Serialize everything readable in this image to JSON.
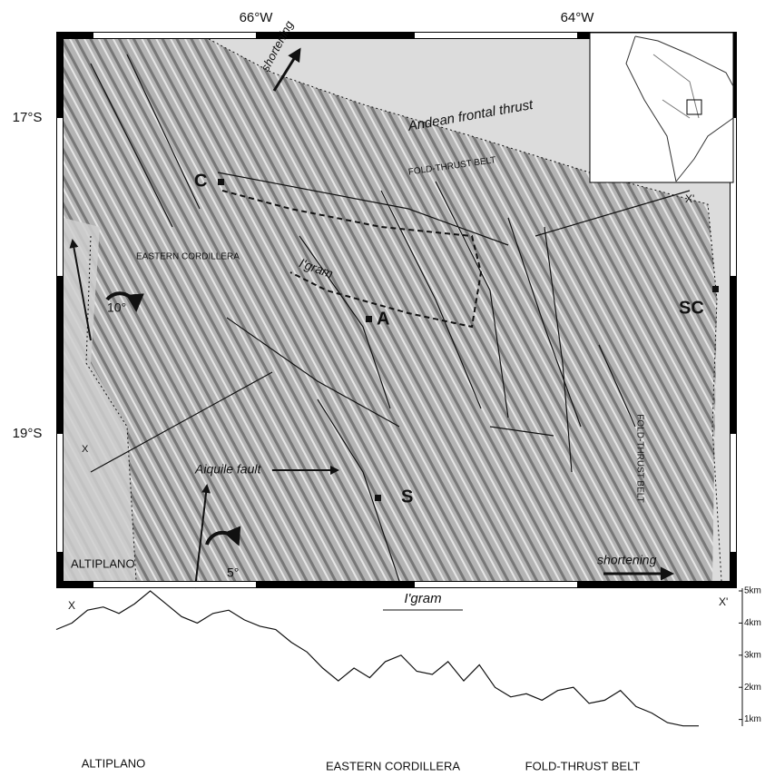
{
  "map": {
    "lon_labels": [
      "66°W",
      "64°W"
    ],
    "lat_labels": [
      "17°S",
      "19°S"
    ],
    "labels": {
      "shortening_north": "shortening",
      "frontal_thrust": "Andean frontal thrust",
      "fold_thrust_north": "FOLD-THRUST BELT",
      "c": "C",
      "x_prime": "X'",
      "eastern_cordillera": "EASTERN CORDILLERA",
      "igram": "I'gram",
      "rotation_north": "10°",
      "a": "A",
      "sc": "SC",
      "x": "X",
      "fold_thrust_east": "FOLD-THRUST BELT",
      "aiquile": "Aiquile fault",
      "s": "S",
      "rotation_south": "5°",
      "altiplano": "ALTIPLANO",
      "shortening_east": "shortening"
    }
  },
  "profile": {
    "title": "I'gram",
    "start_label": "X",
    "end_label": "X'",
    "yticks": [
      {
        "value": 5,
        "label": "5km"
      },
      {
        "value": 4,
        "label": "4km"
      },
      {
        "value": 3,
        "label": "3km"
      },
      {
        "value": 2,
        "label": "2km"
      },
      {
        "value": 1,
        "label": "1km"
      }
    ],
    "elevations": [
      3.8,
      4.0,
      4.4,
      4.5,
      4.3,
      4.6,
      5.0,
      4.6,
      4.2,
      4.0,
      4.3,
      4.4,
      4.1,
      3.9,
      3.8,
      3.4,
      3.1,
      2.6,
      2.2,
      2.6,
      2.3,
      2.8,
      3.0,
      2.5,
      2.4,
      2.8,
      2.2,
      2.7,
      2.0,
      1.7,
      1.8,
      1.6,
      1.9,
      2.0,
      1.5,
      1.6,
      1.9,
      1.4,
      1.2,
      0.9,
      0.8,
      0.8
    ],
    "region_labels": [
      "ALTIPLANO",
      "EASTERN CORDILLERA",
      "FOLD-THRUST BELT"
    ]
  }
}
